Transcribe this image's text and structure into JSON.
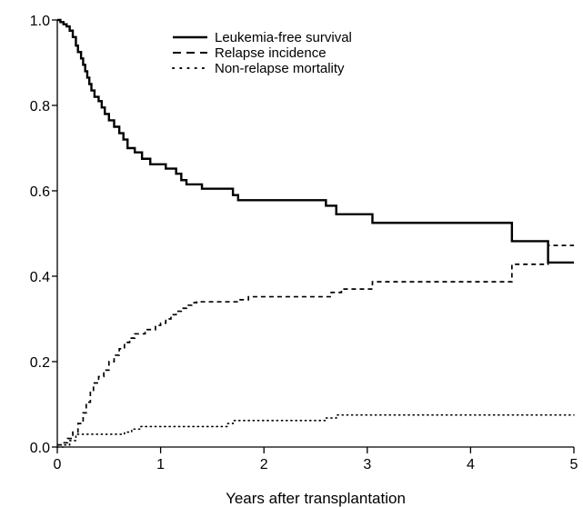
{
  "chart_data": {
    "type": "line",
    "xlabel": "Years after transplantation",
    "ylabel": "",
    "xlim": [
      0,
      5
    ],
    "ylim": [
      0,
      1
    ],
    "xticks": [
      0,
      1,
      2,
      3,
      4,
      5
    ],
    "yticks": [
      0.0,
      0.2,
      0.4,
      0.6,
      0.8,
      1.0
    ],
    "xtick_labels": [
      "0",
      "1",
      "2",
      "3",
      "4",
      "5"
    ],
    "ytick_labels": [
      "0.0",
      "0.2",
      "0.4",
      "0.6",
      "0.8",
      "1.0"
    ],
    "grid": false,
    "legend_position": "top-center",
    "series": [
      {
        "name": "Leukemia-free survival",
        "style": "solid",
        "step": true,
        "x": [
          0,
          0.03,
          0.06,
          0.09,
          0.12,
          0.15,
          0.18,
          0.2,
          0.23,
          0.25,
          0.27,
          0.29,
          0.31,
          0.33,
          0.36,
          0.4,
          0.43,
          0.46,
          0.5,
          0.55,
          0.6,
          0.64,
          0.68,
          0.75,
          0.82,
          0.9,
          1.05,
          1.15,
          1.2,
          1.25,
          1.4,
          1.7,
          1.75,
          2.6,
          2.7,
          3.05,
          4.4,
          4.75,
          5
        ],
        "y": [
          1.0,
          0.995,
          0.99,
          0.985,
          0.975,
          0.96,
          0.94,
          0.925,
          0.91,
          0.895,
          0.88,
          0.865,
          0.85,
          0.835,
          0.82,
          0.81,
          0.795,
          0.78,
          0.765,
          0.75,
          0.735,
          0.72,
          0.7,
          0.69,
          0.675,
          0.662,
          0.652,
          0.64,
          0.625,
          0.615,
          0.605,
          0.59,
          0.578,
          0.565,
          0.545,
          0.525,
          0.482,
          0.432,
          0.432
        ]
      },
      {
        "name": "Relapse incidence",
        "style": "dashed",
        "step": true,
        "x": [
          0,
          0.05,
          0.1,
          0.15,
          0.2,
          0.25,
          0.28,
          0.32,
          0.35,
          0.4,
          0.45,
          0.5,
          0.55,
          0.6,
          0.65,
          0.7,
          0.75,
          0.85,
          0.95,
          1.0,
          1.05,
          1.1,
          1.15,
          1.2,
          1.25,
          1.3,
          1.35,
          1.75,
          1.85,
          2.65,
          2.75,
          3.05,
          4.4,
          4.75,
          5
        ],
        "y": [
          0.005,
          0.01,
          0.02,
          0.035,
          0.055,
          0.08,
          0.105,
          0.13,
          0.15,
          0.165,
          0.18,
          0.2,
          0.215,
          0.23,
          0.245,
          0.255,
          0.265,
          0.275,
          0.285,
          0.29,
          0.3,
          0.31,
          0.318,
          0.325,
          0.332,
          0.338,
          0.34,
          0.345,
          0.352,
          0.362,
          0.37,
          0.387,
          0.428,
          0.472,
          0.472
        ]
      },
      {
        "name": "Non-relapse mortality",
        "style": "dotted",
        "step": true,
        "x": [
          0,
          0.06,
          0.12,
          0.18,
          0.65,
          0.72,
          0.8,
          1.65,
          1.7,
          2.6,
          2.7,
          5
        ],
        "y": [
          0,
          0.005,
          0.015,
          0.03,
          0.035,
          0.042,
          0.048,
          0.055,
          0.062,
          0.068,
          0.075,
          0.075
        ]
      }
    ]
  }
}
